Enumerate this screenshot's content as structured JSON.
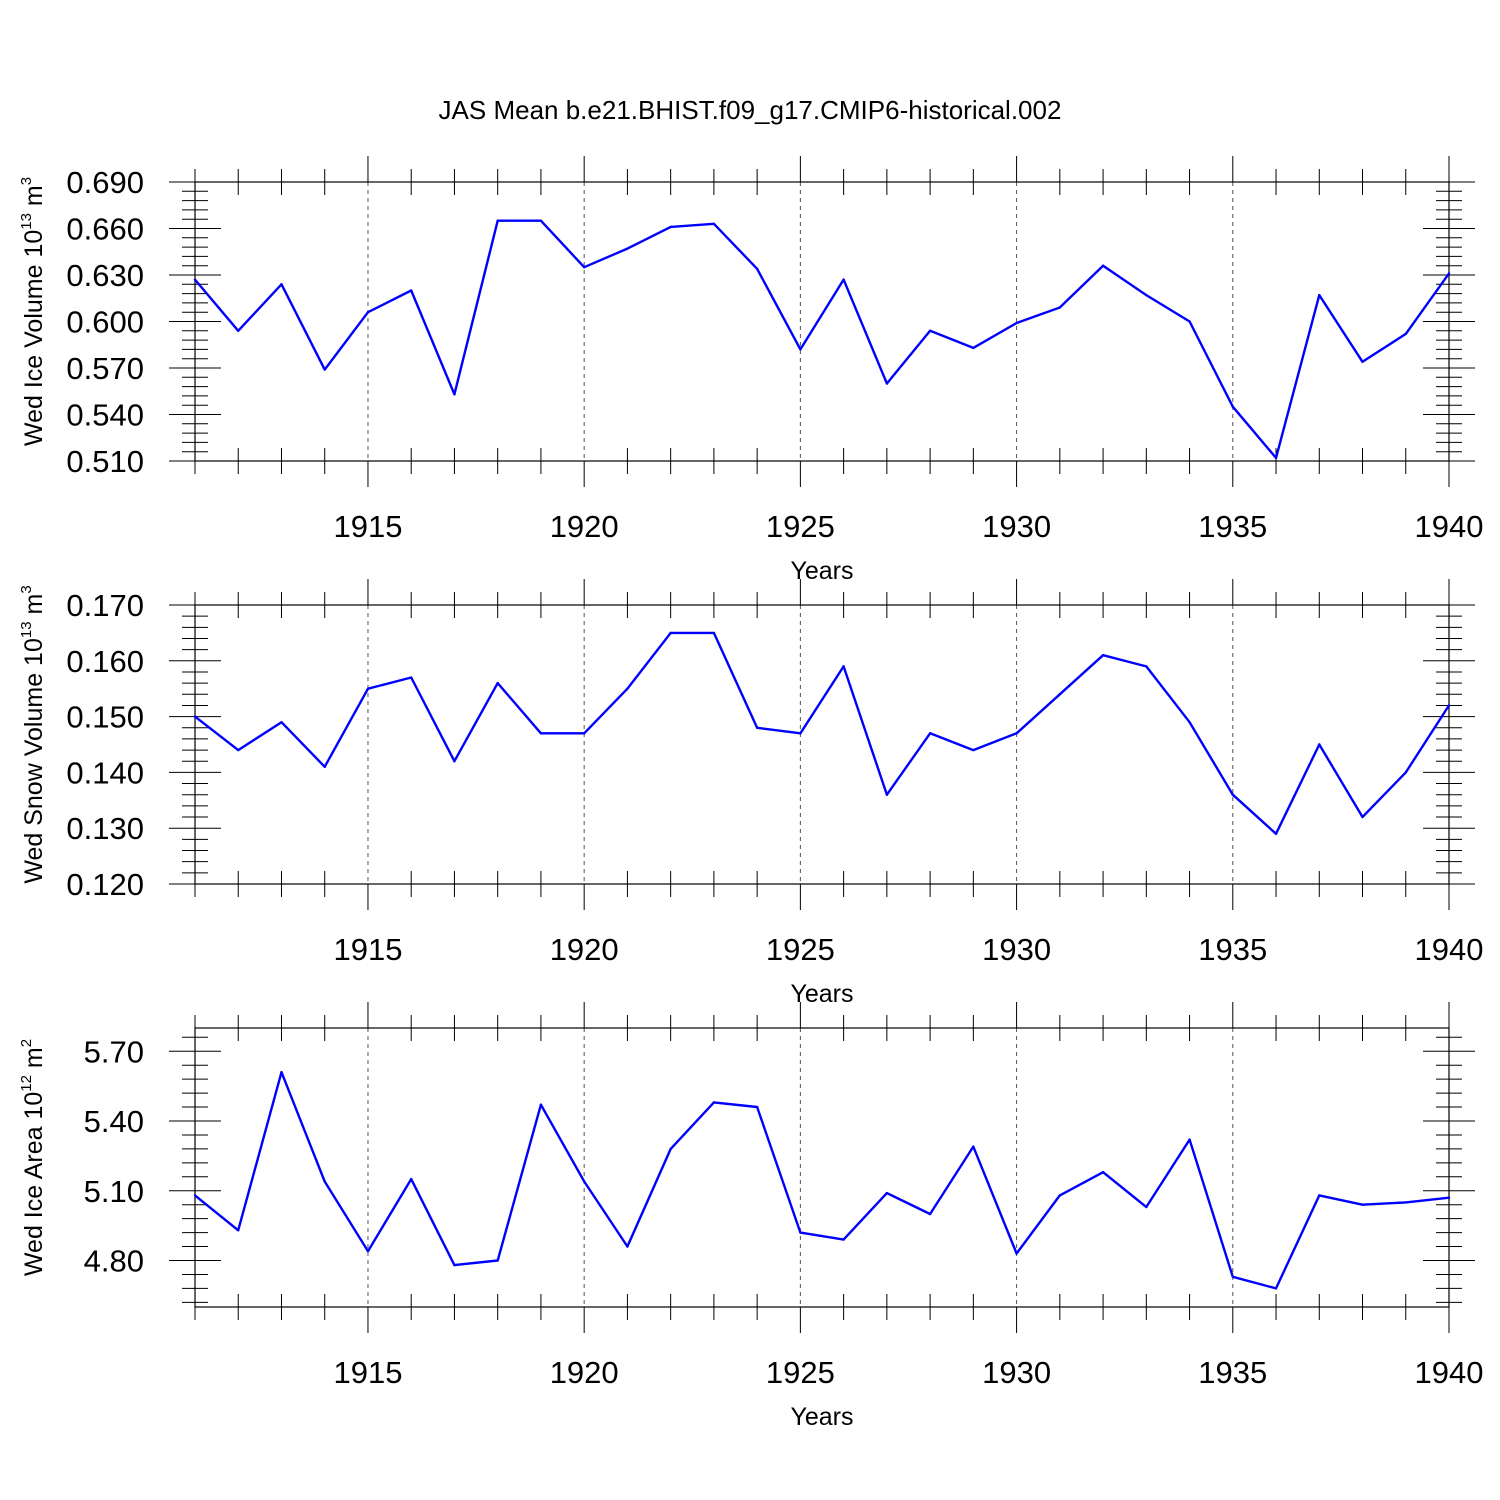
{
  "title": "JAS Mean b.e21.BHIST.f09_g17.CMIP6-historical.002",
  "colors": {
    "series": "#0000ff",
    "axis": "#000000",
    "grid": "#555555"
  },
  "chart_data": [
    {
      "type": "line",
      "ylabel": {
        "text": "Wed Ice Volume 10",
        "sup": "13",
        "unit": " m",
        "unit_sup": "3"
      },
      "xlabel": "Years",
      "xlim": [
        1911,
        1940
      ],
      "ylim": [
        0.51,
        0.69
      ],
      "ytick_values": [
        0.51,
        0.54,
        0.57,
        0.6,
        0.63,
        0.66,
        0.69
      ],
      "ytick_labels": [
        "0.510",
        "0.540",
        "0.570",
        "0.600",
        "0.630",
        "0.660",
        "0.690"
      ],
      "xtick_values": [
        1915,
        1920,
        1925,
        1930,
        1935,
        1940
      ],
      "xtick_labels": [
        "1915",
        "1920",
        "1925",
        "1930",
        "1935",
        "1940"
      ],
      "grid_x": true,
      "series": [
        {
          "x": [
            1911,
            1912,
            1913,
            1914,
            1915,
            1916,
            1917,
            1918,
            1919,
            1920,
            1921,
            1922,
            1923,
            1924,
            1925,
            1926,
            1927,
            1928,
            1929,
            1930,
            1931,
            1932,
            1933,
            1934,
            1935,
            1936,
            1937,
            1938,
            1939,
            1940
          ],
          "values": [
            0.627,
            0.594,
            0.624,
            0.569,
            0.606,
            0.62,
            0.553,
            0.665,
            0.665,
            0.635,
            0.647,
            0.661,
            0.663,
            0.634,
            0.582,
            0.627,
            0.56,
            0.594,
            0.583,
            0.599,
            0.609,
            0.636,
            0.617,
            0.6,
            0.545,
            0.512,
            0.617,
            0.574,
            0.592,
            0.631
          ]
        }
      ]
    },
    {
      "type": "line",
      "ylabel": {
        "text": "Wed Snow Volume 10",
        "sup": "13",
        "unit": " m",
        "unit_sup": "3"
      },
      "xlabel": "Years",
      "xlim": [
        1911,
        1940
      ],
      "ylim": [
        0.12,
        0.17
      ],
      "ytick_values": [
        0.12,
        0.13,
        0.14,
        0.15,
        0.16,
        0.17
      ],
      "ytick_labels": [
        "0.120",
        "0.130",
        "0.140",
        "0.150",
        "0.160",
        "0.170"
      ],
      "xtick_values": [
        1915,
        1920,
        1925,
        1930,
        1935,
        1940
      ],
      "xtick_labels": [
        "1915",
        "1920",
        "1925",
        "1930",
        "1935",
        "1940"
      ],
      "grid_x": true,
      "series": [
        {
          "x": [
            1911,
            1912,
            1913,
            1914,
            1915,
            1916,
            1917,
            1918,
            1919,
            1920,
            1921,
            1922,
            1923,
            1924,
            1925,
            1926,
            1927,
            1928,
            1929,
            1930,
            1931,
            1932,
            1933,
            1934,
            1935,
            1936,
            1937,
            1938,
            1939,
            1940
          ],
          "values": [
            0.15,
            0.144,
            0.149,
            0.141,
            0.155,
            0.157,
            0.142,
            0.156,
            0.147,
            0.147,
            0.155,
            0.165,
            0.165,
            0.148,
            0.147,
            0.159,
            0.136,
            0.147,
            0.144,
            0.147,
            0.154,
            0.161,
            0.159,
            0.149,
            0.136,
            0.129,
            0.145,
            0.132,
            0.14,
            0.152
          ]
        }
      ]
    },
    {
      "type": "line",
      "ylabel": {
        "text": "Wed Ice Area 10",
        "sup": "12",
        "unit": " m",
        "unit_sup": "2"
      },
      "xlabel": "Years",
      "xlim": [
        1911,
        1940
      ],
      "ylim": [
        4.6,
        5.8
      ],
      "ytick_values": [
        4.8,
        5.1,
        5.4,
        5.7
      ],
      "ytick_labels": [
        "4.80",
        "5.10",
        "5.40",
        "5.70"
      ],
      "xtick_values": [
        1915,
        1920,
        1925,
        1930,
        1935,
        1940
      ],
      "xtick_labels": [
        "1915",
        "1920",
        "1925",
        "1930",
        "1935",
        "1940"
      ],
      "grid_x": true,
      "series": [
        {
          "x": [
            1911,
            1912,
            1913,
            1914,
            1915,
            1916,
            1917,
            1918,
            1919,
            1920,
            1921,
            1922,
            1923,
            1924,
            1925,
            1926,
            1927,
            1928,
            1929,
            1930,
            1931,
            1932,
            1933,
            1934,
            1935,
            1936,
            1937,
            1938,
            1939,
            1940
          ],
          "values": [
            5.08,
            4.93,
            5.61,
            5.14,
            4.84,
            5.15,
            4.78,
            4.8,
            5.47,
            5.14,
            4.86,
            5.28,
            5.48,
            5.46,
            4.92,
            4.89,
            5.09,
            5.0,
            5.29,
            4.83,
            5.08,
            5.18,
            5.03,
            5.32,
            4.73,
            4.68,
            5.08,
            5.04,
            5.05,
            5.07
          ]
        }
      ]
    }
  ]
}
